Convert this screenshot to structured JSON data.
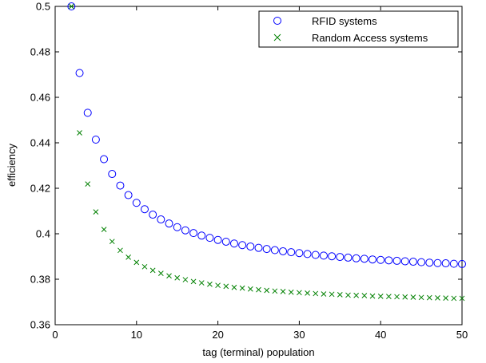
{
  "chart_data": {
    "type": "scatter",
    "xlabel": "tag (terminal) population",
    "ylabel": "efficiency",
    "xlim": [
      0,
      50
    ],
    "ylim": [
      0.36,
      0.5
    ],
    "xticks": [
      "0",
      "10",
      "20",
      "30",
      "40",
      "50"
    ],
    "yticks": [
      "0.36",
      "0.38",
      "0.4",
      "0.42",
      "0.44",
      "0.46",
      "0.48",
      "0.5"
    ],
    "grid": false,
    "legend_position": "top-right",
    "series": [
      {
        "name": "RFID systems",
        "marker": "circle",
        "color": "#0000ff",
        "x": [
          2,
          3,
          4,
          5,
          6,
          7,
          8,
          9,
          10,
          11,
          12,
          13,
          14,
          15,
          16,
          17,
          18,
          19,
          20,
          21,
          22,
          23,
          24,
          25,
          26,
          27,
          28,
          29,
          30,
          31,
          32,
          33,
          34,
          35,
          36,
          37,
          38,
          39,
          40,
          41,
          42,
          43,
          44,
          45,
          46,
          47,
          48,
          49,
          50
        ],
        "values": [
          0.5,
          0.4707,
          0.4532,
          0.4414,
          0.4328,
          0.4263,
          0.4212,
          0.417,
          0.4136,
          0.4108,
          0.4084,
          0.4063,
          0.4045,
          0.4029,
          0.4015,
          0.4003,
          0.3992,
          0.3982,
          0.3973,
          0.3965,
          0.3957,
          0.395,
          0.3944,
          0.3938,
          0.3933,
          0.3928,
          0.3923,
          0.3919,
          0.3915,
          0.3911,
          0.3907,
          0.3904,
          0.3901,
          0.3898,
          0.3895,
          0.3892,
          0.389,
          0.3887,
          0.3885,
          0.3883,
          0.3881,
          0.3879,
          0.3877,
          0.3875,
          0.3873,
          0.3871,
          0.387,
          0.3868,
          0.3867
        ]
      },
      {
        "name": "Random Access systems",
        "marker": "x",
        "color": "#008000",
        "x": [
          2,
          3,
          4,
          5,
          6,
          7,
          8,
          9,
          10,
          11,
          12,
          13,
          14,
          15,
          16,
          17,
          18,
          19,
          20,
          21,
          22,
          23,
          24,
          25,
          26,
          27,
          28,
          29,
          30,
          31,
          32,
          33,
          34,
          35,
          36,
          37,
          38,
          39,
          40,
          41,
          42,
          43,
          44,
          45,
          46,
          47,
          48,
          49,
          50
        ],
        "values": [
          0.5,
          0.4444,
          0.4219,
          0.4096,
          0.4019,
          0.3966,
          0.3927,
          0.3897,
          0.3874,
          0.3855,
          0.3839,
          0.3826,
          0.3815,
          0.3806,
          0.3798,
          0.379,
          0.3784,
          0.3778,
          0.3773,
          0.3769,
          0.3764,
          0.3761,
          0.3757,
          0.3754,
          0.3751,
          0.3748,
          0.3746,
          0.3743,
          0.3741,
          0.3739,
          0.3737,
          0.3735,
          0.3734,
          0.3732,
          0.373,
          0.3729,
          0.3728,
          0.3726,
          0.3725,
          0.3724,
          0.3723,
          0.3722,
          0.3721,
          0.372,
          0.3719,
          0.3718,
          0.3717,
          0.3716,
          0.3716
        ]
      }
    ]
  }
}
